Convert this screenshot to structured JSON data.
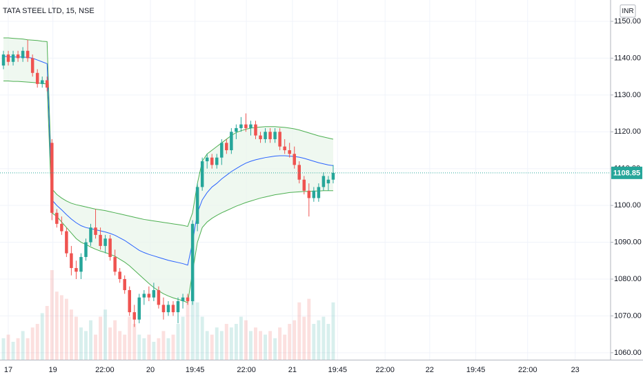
{
  "chart_data": {
    "type": "candlestick",
    "title": "TATA STEEL LTD, 15, NSE",
    "currency": "INR",
    "up_color": "#26a69a",
    "down_color": "#ef5350",
    "band_fill": "#e8f5e9",
    "grid": true,
    "xlim": [
      -0.71,
      125.2
    ],
    "xticks": [
      {
        "value": 1.0,
        "label": "17"
      },
      {
        "value": 10.2,
        "label": "19"
      },
      {
        "value": 20.9,
        "label": "22:00"
      },
      {
        "value": 30.3,
        "label": "20"
      },
      {
        "value": 39.5,
        "label": "19:45"
      },
      {
        "value": 50.1,
        "label": "22:00"
      },
      {
        "value": 59.6,
        "label": "21"
      },
      {
        "value": 68.9,
        "label": "19:45"
      },
      {
        "value": 78.7,
        "label": "22:00"
      },
      {
        "value": 87.9,
        "label": "22"
      },
      {
        "value": 97.4,
        "label": "19:45"
      },
      {
        "value": 108.1,
        "label": "22:00"
      },
      {
        "value": 117.9,
        "label": "23"
      }
    ],
    "ylim": [
      1058.1,
      1155.8
    ],
    "yticks": [
      {
        "value": 1060,
        "label": "1060.00"
      },
      {
        "value": 1070,
        "label": "1070.00"
      },
      {
        "value": 1080,
        "label": "1080.00"
      },
      {
        "value": 1090,
        "label": "1090.00"
      },
      {
        "value": 1100,
        "label": "1100.00"
      },
      {
        "value": 1110,
        "label": "1110.00"
      },
      {
        "value": 1120,
        "label": "1120.00"
      },
      {
        "value": 1130,
        "label": "1130.00"
      },
      {
        "value": 1140,
        "label": "1140.00"
      },
      {
        "value": 1150,
        "label": "1150.00"
      }
    ],
    "open": [
      1138,
      1141,
      1139,
      1141,
      1140,
      1142,
      1140,
      1136,
      1133,
      1134,
      1117,
      1098,
      1095,
      1093,
      1087,
      1083,
      1082,
      1086,
      1090,
      1094,
      1092,
      1089,
      1091,
      1086,
      1082,
      1080,
      1077,
      1071,
      1069,
      1075,
      1076,
      1075,
      1077,
      1073,
      1071,
      1073,
      1071,
      1074,
      1075,
      1074,
      1095,
      1105,
      1112,
      1113,
      1111,
      1113,
      1117,
      1115,
      1120,
      1121,
      1122,
      1121,
      1122,
      1119,
      1118,
      1120,
      1118,
      1120,
      1116,
      1115,
      1114,
      1111,
      1107,
      1104,
      1102,
      1102,
      1105,
      1106,
      1107
    ],
    "high": [
      1142,
      1142,
      1142,
      1142,
      1143,
      1145,
      1141,
      1137,
      1135,
      1135,
      1118,
      1099,
      1097,
      1094,
      1089,
      1085,
      1087,
      1091,
      1095,
      1099,
      1094,
      1092,
      1092,
      1088,
      1083,
      1081,
      1078,
      1073,
      1076,
      1077,
      1078,
      1079,
      1078,
      1075,
      1074,
      1074,
      1075,
      1076,
      1076,
      1096,
      1106,
      1113,
      1114,
      1114,
      1114,
      1118,
      1118,
      1121,
      1122,
      1124,
      1125,
      1123,
      1123,
      1120,
      1121,
      1121,
      1121,
      1121,
      1118,
      1117,
      1116,
      1112,
      1108,
      1106,
      1105,
      1106,
      1109,
      1108,
      1111
    ],
    "low": [
      1137,
      1138,
      1138,
      1139,
      1139,
      1139,
      1135,
      1132,
      1132,
      1131,
      1096,
      1094,
      1092,
      1086,
      1081,
      1080,
      1080,
      1085,
      1089,
      1091,
      1088,
      1087,
      1085,
      1081,
      1079,
      1076,
      1070,
      1067,
      1068,
      1073,
      1074,
      1074,
      1072,
      1069,
      1070,
      1070,
      1068,
      1072,
      1073,
      1073,
      1093,
      1104,
      1110,
      1110,
      1110,
      1111,
      1114,
      1114,
      1118,
      1120,
      1120,
      1119,
      1118,
      1117,
      1117,
      1117,
      1117,
      1115,
      1114,
      1113,
      1110,
      1106,
      1103,
      1097,
      1101,
      1101,
      1104,
      1104,
      1106
    ],
    "close": [
      1141,
      1139,
      1141,
      1140,
      1142,
      1140,
      1136,
      1133,
      1134,
      1132,
      1098,
      1095,
      1093,
      1087,
      1083,
      1082,
      1086,
      1090,
      1094,
      1092,
      1089,
      1091,
      1086,
      1082,
      1080,
      1077,
      1071,
      1069,
      1075,
      1076,
      1075,
      1077,
      1073,
      1071,
      1073,
      1071,
      1074,
      1075,
      1074,
      1095,
      1105,
      1112,
      1113,
      1111,
      1113,
      1117,
      1115,
      1120,
      1121,
      1122,
      1121,
      1122,
      1119,
      1118,
      1120,
      1118,
      1120,
      1116,
      1115,
      1114,
      1111,
      1107,
      1104,
      1102,
      1104,
      1105,
      1108,
      1107,
      1108.85
    ],
    "volume": [
      30,
      35,
      25,
      30,
      40,
      30,
      45,
      50,
      65,
      75,
      125,
      95,
      90,
      85,
      70,
      60,
      45,
      40,
      55,
      35,
      60,
      70,
      45,
      55,
      40,
      35,
      60,
      50,
      35,
      30,
      35,
      25,
      30,
      40,
      30,
      35,
      50,
      60,
      90,
      115,
      80,
      60,
      40,
      35,
      45,
      40,
      50,
      45,
      50,
      60,
      55,
      40,
      45,
      40,
      35,
      40,
      30,
      45,
      35,
      50,
      55,
      80,
      60,
      85,
      50,
      55,
      60,
      50,
      80
    ],
    "bands": [
      {
        "color": "#4caf50",
        "values": [
          1145.5,
          1145.5,
          1145.4,
          1145.3,
          1145.2,
          1145.0,
          1144.9,
          1144.8,
          1144.6,
          1144.5,
          1104.5,
          1103,
          1102,
          1101.2,
          1100.6,
          1100.2,
          1099.9,
          1099.6,
          1099.3,
          1099,
          1098.8,
          1098.6,
          1098.3,
          1098,
          1097.7,
          1097.4,
          1097.1,
          1096.8,
          1096.5,
          1096.2,
          1096,
          1095.8,
          1095.6,
          1095.4,
          1095.2,
          1095,
          1094.8,
          1094.6,
          1094.3,
          1098,
          1106,
          1112,
          1114,
          1115,
          1116,
          1117,
          1118,
          1119,
          1119.8,
          1120.3,
          1120.7,
          1121,
          1121.2,
          1121.3,
          1121.4,
          1121.4,
          1121.4,
          1121.3,
          1121.2,
          1121,
          1120.8,
          1120.5,
          1120.1,
          1119.7,
          1119.3,
          1118.9,
          1118.6,
          1118.3,
          1118
        ]
      },
      {
        "color": "#2962ff",
        "values": [
          1140.5,
          1140.4,
          1140.3,
          1140.3,
          1140.3,
          1140.2,
          1140,
          1139.5,
          1139,
          1138.5,
          1101.5,
          1100,
          1098.8,
          1097.5,
          1096.3,
          1095.3,
          1094.5,
          1094,
          1093.7,
          1093.4,
          1093.1,
          1092.8,
          1092.4,
          1091.9,
          1091.2,
          1090.5,
          1089.6,
          1088.7,
          1087.8,
          1087.2,
          1086.7,
          1086.3,
          1085.9,
          1085.5,
          1085.1,
          1084.8,
          1084.5,
          1084.2,
          1083.8,
          1090,
          1098,
          1101.5,
          1103.5,
          1105,
          1106,
          1107.2,
          1108.2,
          1109.2,
          1110,
          1110.8,
          1111.5,
          1112,
          1112.4,
          1112.7,
          1113,
          1113.2,
          1113.4,
          1113.5,
          1113.5,
          1113.4,
          1113.3,
          1113.1,
          1112.8,
          1112.4,
          1112,
          1111.6,
          1111.3,
          1111,
          1110.8
        ]
      },
      {
        "color": "#4caf50",
        "values": [
          1133.8,
          1133.8,
          1133.7,
          1133.7,
          1133.6,
          1133.5,
          1133.4,
          1133.3,
          1133.1,
          1133,
          1098,
          1097,
          1095.5,
          1094,
          1092.5,
          1091,
          1090,
          1089.4,
          1088.7,
          1088.1,
          1087.6,
          1087.2,
          1086.7,
          1086.2,
          1085.4,
          1084.6,
          1083.6,
          1082.4,
          1081.2,
          1080,
          1078.8,
          1077.7,
          1076.8,
          1076,
          1075.4,
          1074.9,
          1074.5,
          1074.1,
          1073.6,
          1082,
          1090,
          1094,
          1095.5,
          1096.5,
          1097.3,
          1098,
          1098.6,
          1099.2,
          1099.8,
          1100.3,
          1100.8,
          1101.2,
          1101.6,
          1102,
          1102.3,
          1102.6,
          1102.9,
          1103.1,
          1103.3,
          1103.5,
          1103.6,
          1103.7,
          1103.8,
          1103.8,
          1103.9,
          1103.9,
          1104,
          1104,
          1104
        ]
      }
    ],
    "last_price": {
      "value": 1108.85,
      "label": "1108.85"
    }
  }
}
